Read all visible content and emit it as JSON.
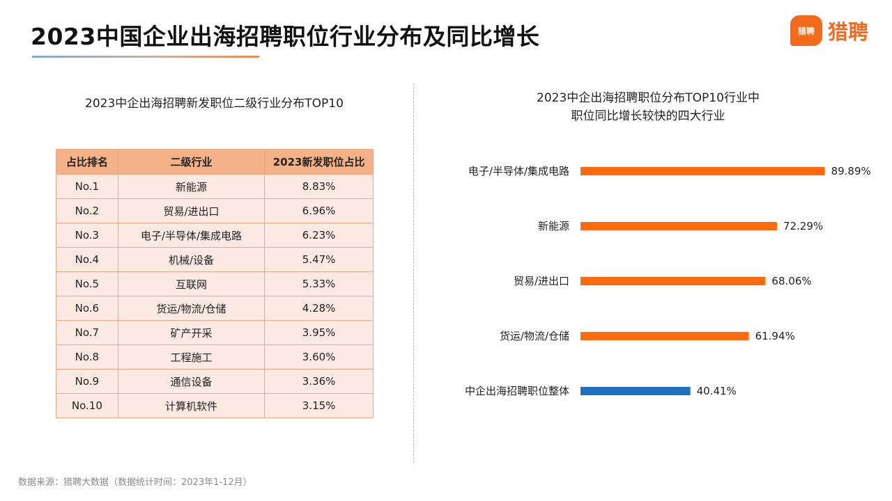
{
  "header": {
    "title": "2023中国企业出海招聘职位行业分布及同比增长",
    "logo_badge": "猎聘",
    "logo_text": "猎聘"
  },
  "left_panel": {
    "title": "2023中企出海招聘新发职位二级行业分布TOP10",
    "columns": [
      "占比排名",
      "二级行业",
      "2023新发职位占比"
    ],
    "rows": [
      [
        "No.1",
        "新能源",
        "8.83%"
      ],
      [
        "No.2",
        "贸易/进出口",
        "6.96%"
      ],
      [
        "No.3",
        "电子/半导体/集成电路",
        "6.23%"
      ],
      [
        "No.4",
        "机械/设备",
        "5.47%"
      ],
      [
        "No.5",
        "互联网",
        "5.33%"
      ],
      [
        "No.6",
        "货运/物流/仓储",
        "4.28%"
      ],
      [
        "No.7",
        "矿产开采",
        "3.95%"
      ],
      [
        "No.8",
        "工程施工",
        "3.60%"
      ],
      [
        "No.9",
        "通信设备",
        "3.36%"
      ],
      [
        "No.10",
        "计算机软件",
        "3.15%"
      ]
    ]
  },
  "right_panel": {
    "title_line1": "2023中企出海招聘职位分布TOP10行业中",
    "title_line2": "职位同比增长较快的四大行业"
  },
  "chart_data": {
    "type": "bar",
    "orientation": "horizontal",
    "categories": [
      "电子/半导体/集成电路",
      "新能源",
      "贸易/进出口",
      "货运/物流/仓储",
      "中企出海招聘职位整体"
    ],
    "values": [
      89.89,
      72.29,
      68.06,
      61.94,
      40.41
    ],
    "value_labels": [
      "89.89%",
      "72.29%",
      "68.06%",
      "61.94%",
      "40.41%"
    ],
    "colors": [
      "#ff6a0d",
      "#ff6a0d",
      "#ff6a0d",
      "#ff6a0d",
      "#1f6fbf"
    ],
    "xlim": [
      0,
      100
    ],
    "grid": false,
    "axis_visible": false
  },
  "footer": {
    "source": "数据来源：猎聘大数据（数据统计时间：2023年1-12月）"
  }
}
